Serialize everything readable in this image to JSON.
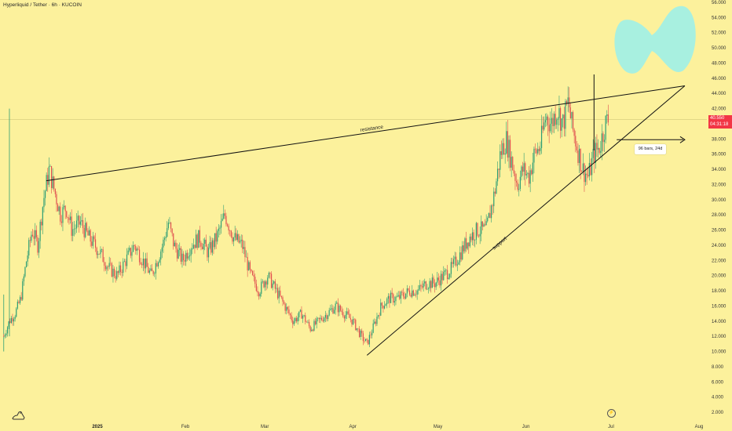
{
  "header": {
    "title": "Hyperliquid / Tether · 6h · KUCOIN"
  },
  "price_tag": {
    "price": "40.550",
    "countdown": "04:31:18"
  },
  "measure_label": "96 bars, 24d",
  "event_icon": "lightning-icon",
  "colors": {
    "background": "#fcf19c",
    "up": "#2e9e75",
    "down": "#e05050",
    "line": "#111111",
    "price_tag": "#f23645",
    "shape": "#a8f0e0"
  },
  "chart_data": {
    "type": "candlestick",
    "title": "Hyperliquid / Tether · 6h · KUCOIN",
    "ylim": [
      0,
      57
    ],
    "y_ticks": [
      "2.000",
      "4.000",
      "6.000",
      "8.000",
      "10.000",
      "12.000",
      "14.000",
      "16.000",
      "18.000",
      "20.000",
      "22.000",
      "24.000",
      "26.000",
      "28.000",
      "30.000",
      "32.000",
      "34.000",
      "36.000",
      "38.000",
      "40.000",
      "42.000",
      "44.000",
      "46.000",
      "48.000",
      "50.000",
      "52.000",
      "54.000",
      "56.000"
    ],
    "x_ticks": [
      "2025",
      "Feb",
      "Mar",
      "Apr",
      "May",
      "Jun",
      "Jul",
      "Aug"
    ],
    "current_price": 40.55,
    "price_path": [
      {
        "x": "2024-11-29",
        "y": 12
      },
      {
        "x": "2024-12-01",
        "y": 14
      },
      {
        "x": "2024-12-03",
        "y": 15
      },
      {
        "x": "2024-12-05",
        "y": 17
      },
      {
        "x": "2024-12-07",
        "y": 22
      },
      {
        "x": "2024-12-09",
        "y": 26
      },
      {
        "x": "2024-12-11",
        "y": 24
      },
      {
        "x": "2024-12-13",
        "y": 30
      },
      {
        "x": "2024-12-15",
        "y": 34
      },
      {
        "x": "2024-12-17",
        "y": 31
      },
      {
        "x": "2024-12-19",
        "y": 28
      },
      {
        "x": "2024-12-21",
        "y": 29
      },
      {
        "x": "2024-12-23",
        "y": 26
      },
      {
        "x": "2024-12-26",
        "y": 27
      },
      {
        "x": "2024-12-29",
        "y": 25
      },
      {
        "x": "2025-01-02",
        "y": 23
      },
      {
        "x": "2025-01-05",
        "y": 21
      },
      {
        "x": "2025-01-08",
        "y": 20
      },
      {
        "x": "2025-01-11",
        "y": 22
      },
      {
        "x": "2025-01-14",
        "y": 24
      },
      {
        "x": "2025-01-17",
        "y": 22
      },
      {
        "x": "2025-01-20",
        "y": 20
      },
      {
        "x": "2025-01-24",
        "y": 24
      },
      {
        "x": "2025-01-26",
        "y": 27
      },
      {
        "x": "2025-01-28",
        "y": 24
      },
      {
        "x": "2025-01-31",
        "y": 22
      },
      {
        "x": "2025-02-03",
        "y": 24
      },
      {
        "x": "2025-02-06",
        "y": 25
      },
      {
        "x": "2025-02-09",
        "y": 23
      },
      {
        "x": "2025-02-12",
        "y": 25
      },
      {
        "x": "2025-02-15",
        "y": 28
      },
      {
        "x": "2025-02-18",
        "y": 25
      },
      {
        "x": "2025-02-21",
        "y": 24
      },
      {
        "x": "2025-02-24",
        "y": 20
      },
      {
        "x": "2025-02-27",
        "y": 18
      },
      {
        "x": "2025-03-02",
        "y": 20
      },
      {
        "x": "2025-03-05",
        "y": 18
      },
      {
        "x": "2025-03-08",
        "y": 16
      },
      {
        "x": "2025-03-11",
        "y": 14
      },
      {
        "x": "2025-03-14",
        "y": 15
      },
      {
        "x": "2025-03-17",
        "y": 13
      },
      {
        "x": "2025-03-20",
        "y": 14
      },
      {
        "x": "2025-03-23",
        "y": 15
      },
      {
        "x": "2025-03-26",
        "y": 16
      },
      {
        "x": "2025-03-29",
        "y": 15
      },
      {
        "x": "2025-04-01",
        "y": 14
      },
      {
        "x": "2025-04-04",
        "y": 12
      },
      {
        "x": "2025-04-06",
        "y": 11
      },
      {
        "x": "2025-04-08",
        "y": 13
      },
      {
        "x": "2025-04-11",
        "y": 16
      },
      {
        "x": "2025-04-14",
        "y": 17
      },
      {
        "x": "2025-04-17",
        "y": 17
      },
      {
        "x": "2025-04-21",
        "y": 18
      },
      {
        "x": "2025-04-24",
        "y": 18
      },
      {
        "x": "2025-04-27",
        "y": 19
      },
      {
        "x": "2025-04-30",
        "y": 19
      },
      {
        "x": "2025-05-03",
        "y": 20
      },
      {
        "x": "2025-05-06",
        "y": 21
      },
      {
        "x": "2025-05-09",
        "y": 23
      },
      {
        "x": "2025-05-12",
        "y": 25
      },
      {
        "x": "2025-05-15",
        "y": 26
      },
      {
        "x": "2025-05-18",
        "y": 26
      },
      {
        "x": "2025-05-21",
        "y": 31
      },
      {
        "x": "2025-05-23",
        "y": 36
      },
      {
        "x": "2025-05-25",
        "y": 38
      },
      {
        "x": "2025-05-27",
        "y": 35
      },
      {
        "x": "2025-05-29",
        "y": 32
      },
      {
        "x": "2025-05-31",
        "y": 34
      },
      {
        "x": "2025-06-02",
        "y": 33
      },
      {
        "x": "2025-06-04",
        "y": 36
      },
      {
        "x": "2025-06-06",
        "y": 37
      },
      {
        "x": "2025-06-08",
        "y": 41
      },
      {
        "x": "2025-06-10",
        "y": 40
      },
      {
        "x": "2025-06-12",
        "y": 42
      },
      {
        "x": "2025-06-14",
        "y": 40
      },
      {
        "x": "2025-06-16",
        "y": 43
      },
      {
        "x": "2025-06-17",
        "y": 40
      },
      {
        "x": "2025-06-19",
        "y": 37
      },
      {
        "x": "2025-06-21",
        "y": 34
      },
      {
        "x": "2025-06-23",
        "y": 33
      },
      {
        "x": "2025-06-25",
        "y": 36
      },
      {
        "x": "2025-06-27",
        "y": 37
      },
      {
        "x": "2025-06-29",
        "y": 40
      },
      {
        "x": "2025-06-30",
        "y": 40.55
      }
    ],
    "annotations": [
      {
        "label": "resistance",
        "from": {
          "x": "2024-12-14",
          "y": 32.5
        },
        "to": {
          "x": "2025-07-27",
          "y": 45
        }
      },
      {
        "label": "support",
        "from": {
          "x": "2025-04-06",
          "y": 9.5
        },
        "to": {
          "x": "2025-07-27",
          "y": 45
        }
      },
      {
        "label": "",
        "from": {
          "x": "2025-06-25",
          "y": 46.5
        },
        "to": {
          "x": "2025-06-25",
          "y": 36.5
        }
      }
    ],
    "measure": {
      "label": "96 bars, 24d",
      "from": "2025-07-03",
      "to": "2025-07-27",
      "y": 37.9
    }
  }
}
